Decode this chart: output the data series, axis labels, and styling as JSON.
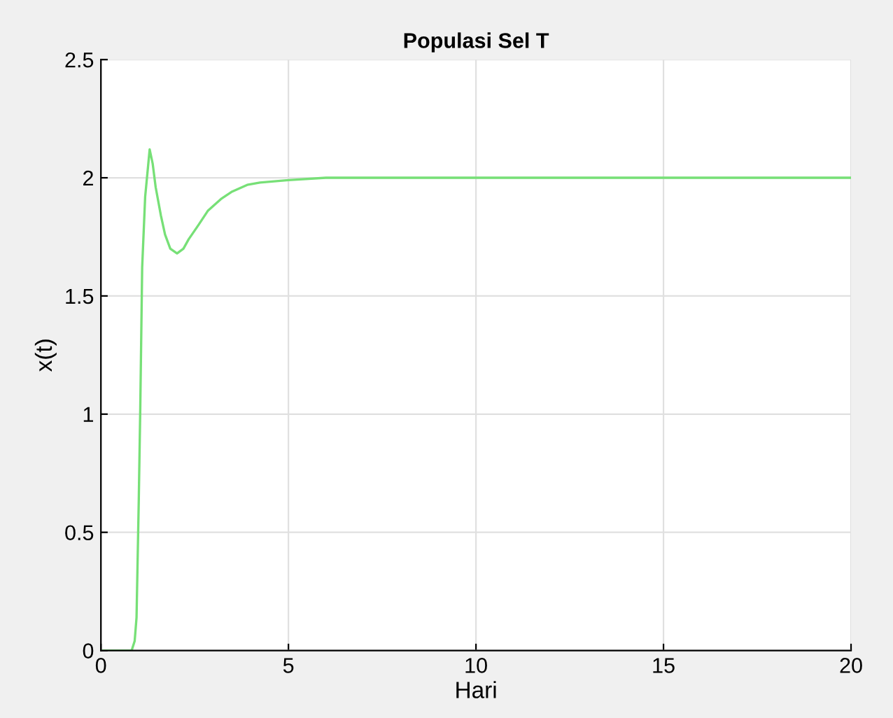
{
  "chart_data": {
    "type": "line",
    "title": "Populasi Sel T",
    "xlabel": "Hari",
    "ylabel": "x(t)",
    "series": [
      {
        "color": "#77e077",
        "x": [
          0,
          0.82,
          0.9,
          0.95,
          1.01,
          1.05,
          1.1,
          1.18,
          1.3,
          1.38,
          1.46,
          1.6,
          1.71,
          1.85,
          2.03,
          2.2,
          2.34,
          2.6,
          2.85,
          3.2,
          3.48,
          3.9,
          4.24,
          5.0,
          6.0,
          7.0,
          10,
          15,
          20
        ],
        "values": [
          0,
          0,
          0.04,
          0.14,
          0.64,
          1.03,
          1.62,
          1.92,
          2.12,
          2.06,
          1.96,
          1.84,
          1.76,
          1.7,
          1.68,
          1.7,
          1.74,
          1.8,
          1.86,
          1.91,
          1.94,
          1.97,
          1.98,
          1.99,
          2.0,
          2.0,
          2.0,
          2.0,
          2.0
        ]
      }
    ],
    "xlim": [
      0,
      20
    ],
    "ylim": [
      0,
      2.5
    ],
    "xticks": [
      0,
      5,
      10,
      15,
      20
    ],
    "yticks": [
      0,
      0.5,
      1,
      1.5,
      2,
      2.5
    ],
    "grid": true
  }
}
